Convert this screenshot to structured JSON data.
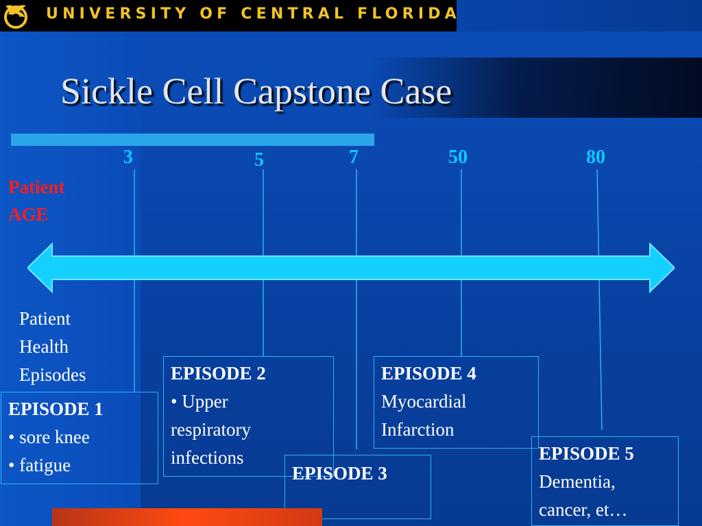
{
  "header": {
    "university": "UNIVERSITY OF CENTRAL FLORIDA",
    "logo_icon": "pegasus-logo",
    "logo_color": "#f2c22a"
  },
  "slide": {
    "title": "Sickle Cell Capstone Case",
    "age_label": [
      "Patient",
      "AGE"
    ],
    "episodes_label": [
      "Patient",
      "Health",
      "Episodes"
    ]
  },
  "ages": [
    "3",
    "5",
    "7",
    "50",
    "80"
  ],
  "episodes": [
    {
      "title": "EPISODE 1",
      "lines": [
        "sore knee",
        "fatigue"
      ],
      "bulleted": true
    },
    {
      "title": "EPISODE 2",
      "lines": [
        "Upper",
        "respiratory",
        "infections"
      ],
      "bulleted_first_only": true
    },
    {
      "title": "EPISODE 3",
      "lines": []
    },
    {
      "title": "EPISODE 4",
      "lines": [
        "Myocardial",
        "Infarction"
      ]
    },
    {
      "title": "EPISODE 5",
      "lines": [
        "Dementia,",
        "cancer, et…"
      ]
    }
  ],
  "colors": {
    "age_label": "#ff1c1c",
    "age_ticks": "#10c9ff",
    "timeline_arrow": "#14d0ff",
    "box_border": "#2ab4f2"
  }
}
